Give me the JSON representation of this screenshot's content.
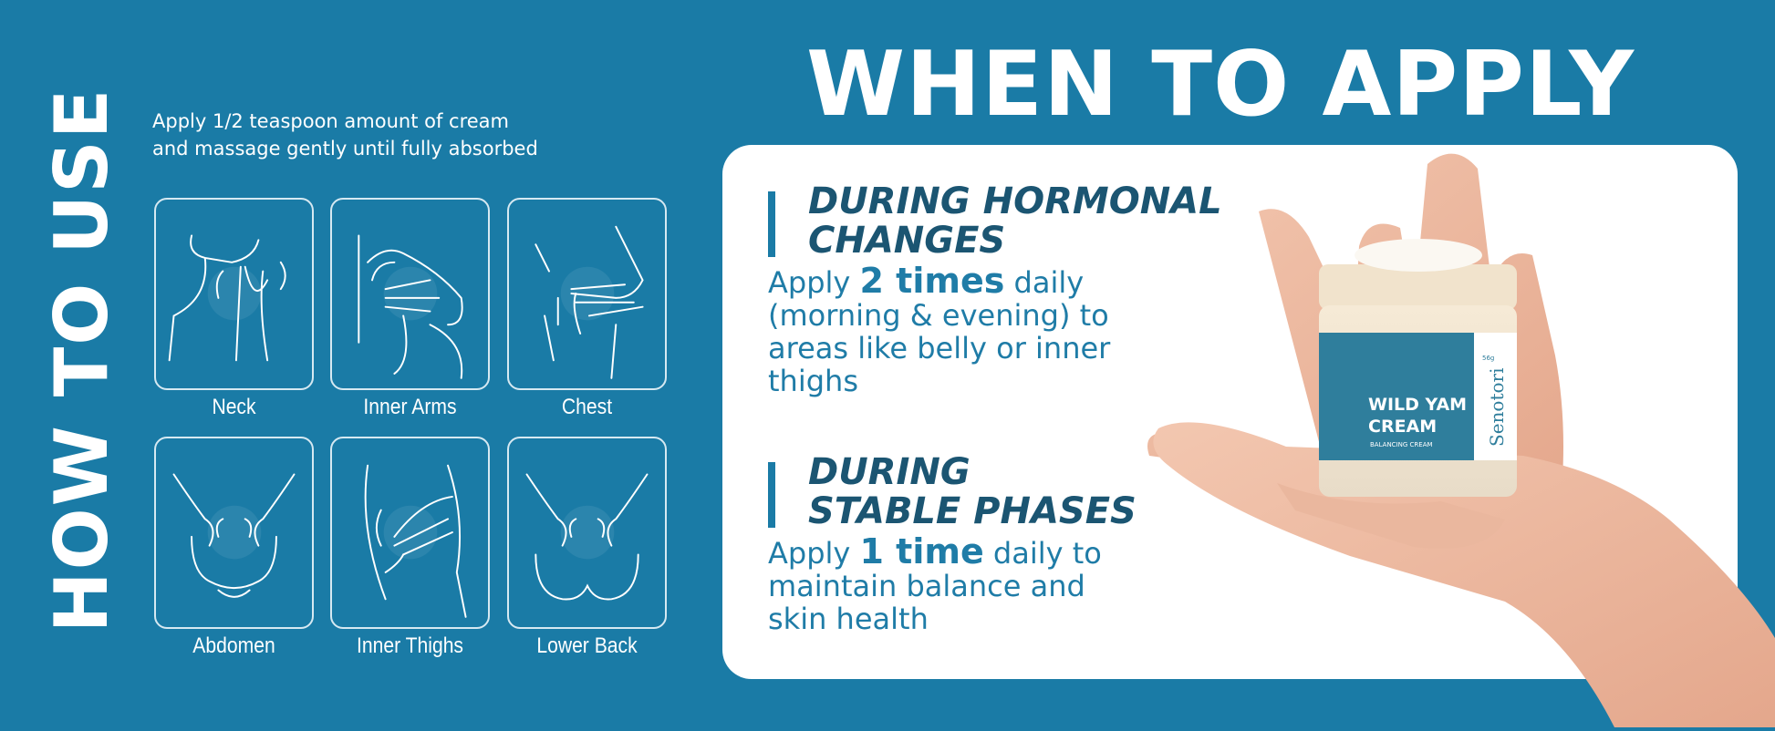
{
  "how_to_use": {
    "title": "HOW TO USE",
    "instruction_line1": "Apply 1/2 teaspoon amount of cream",
    "instruction_line2": "and massage gently until fully absorbed",
    "areas": [
      {
        "label": "Neck",
        "icon": "neck-massage-icon"
      },
      {
        "label": "Inner Arms",
        "icon": "inner-arms-massage-icon"
      },
      {
        "label": "Chest",
        "icon": "chest-massage-icon"
      },
      {
        "label": "Abdomen",
        "icon": "abdomen-massage-icon"
      },
      {
        "label": "Inner Thighs",
        "icon": "inner-thighs-massage-icon"
      },
      {
        "label": "Lower Back",
        "icon": "lower-back-massage-icon"
      }
    ]
  },
  "when_to_apply": {
    "title": "WHEN TO APPLY",
    "sections": [
      {
        "heading_line1": "DURING HORMONAL",
        "heading_line2": "CHANGES",
        "pre": "Apply ",
        "emphasis": "2 times",
        "post": " daily (morning & evening) to areas like belly or inner thighs"
      },
      {
        "heading_line1": "DURING",
        "heading_line2": "STABLE PHASES",
        "pre": "Apply ",
        "emphasis": "1 time",
        "post": " daily to maintain balance and skin health"
      }
    ]
  },
  "product": {
    "brand": "Senotori",
    "name_line1": "WILD YAM",
    "name_line2": "CREAM",
    "subtitle": "BALANCING CREAM",
    "weight": "56g"
  },
  "colors": {
    "background": "#1a7ba6",
    "heading": "#1b5572",
    "body_text": "#1f7ca7",
    "card": "#ffffff"
  }
}
